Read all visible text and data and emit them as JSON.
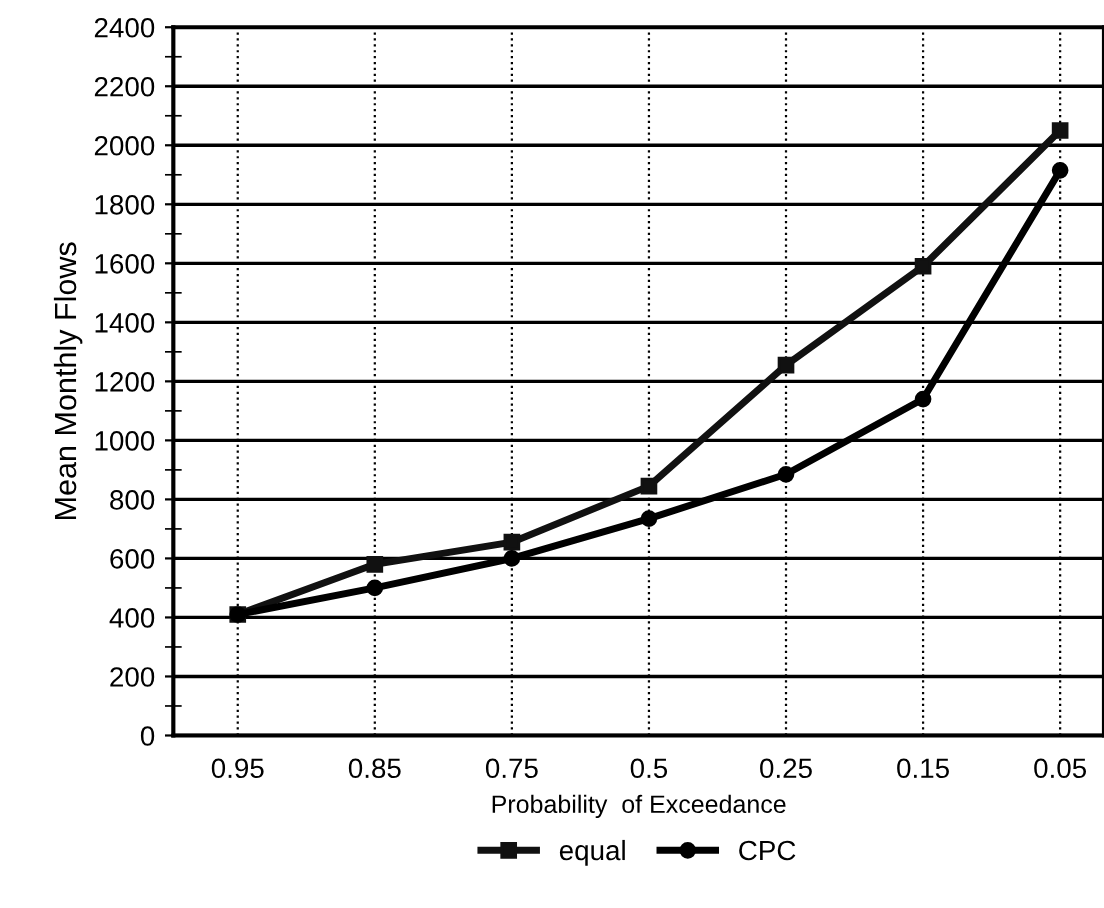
{
  "chart_data": {
    "type": "line",
    "xlabel": "Probability  of Exceedance",
    "ylabel": "Mean Monthly Flows",
    "categories": [
      "0.95",
      "0.85",
      "0.75",
      "0.5",
      "0.25",
      "0.15",
      "0.05"
    ],
    "series": [
      {
        "name": "equal",
        "color": "#111111",
        "marker": "square",
        "values": [
          410,
          580,
          655,
          845,
          1255,
          1590,
          2050
        ]
      },
      {
        "name": "CPC",
        "color": "#000000",
        "marker": "circle",
        "values": [
          410,
          500,
          600,
          735,
          885,
          1140,
          1915
        ]
      }
    ],
    "ylim": [
      0,
      2400
    ],
    "yticks": [
      0,
      200,
      400,
      600,
      800,
      1000,
      1200,
      1400,
      1600,
      1800,
      2000,
      2200,
      2400
    ],
    "grid": true,
    "legend": "bottom",
    "line_style": "solid"
  }
}
